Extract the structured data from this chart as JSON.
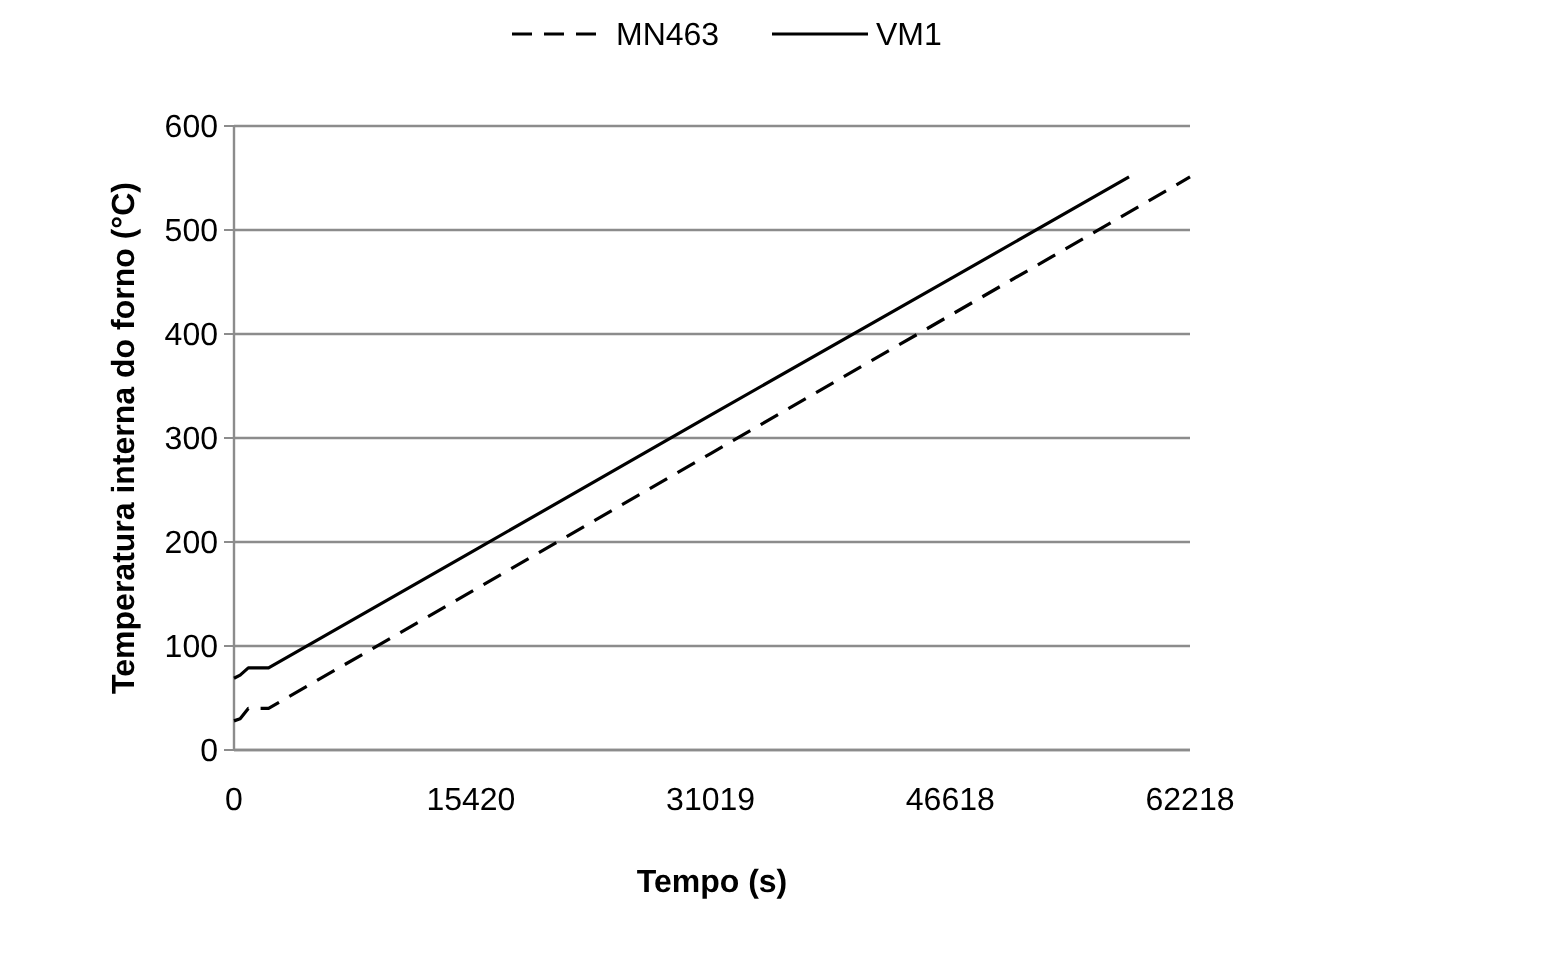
{
  "chart_data": {
    "type": "line",
    "xlabel": "Tempo (s)",
    "ylabel": "Temperatura interna do forno (°C)",
    "xlim": [
      0,
      62218
    ],
    "xticks": [
      0,
      15420,
      31019,
      46618,
      62218
    ],
    "ylim": [
      0,
      600
    ],
    "yticks": [
      0,
      100,
      200,
      300,
      400,
      500,
      600
    ],
    "grid": "y",
    "legend": "top",
    "marker": "none",
    "series": [
      {
        "name": "MN463",
        "color": "#000000",
        "line_style": "dashed",
        "x": [
          0,
          400,
          930,
          2250,
          15420,
          31019,
          46618,
          62218
        ],
        "values": [
          28,
          30,
          40,
          40,
          152,
          285,
          418,
          551
        ]
      },
      {
        "name": "VM1",
        "color": "#000000",
        "line_style": "solid",
        "x": [
          0,
          400,
          930,
          2250,
          15420,
          31019,
          46618,
          58250
        ],
        "values": [
          69,
          72,
          79,
          79,
          190,
          322,
          453,
          551
        ]
      }
    ]
  }
}
